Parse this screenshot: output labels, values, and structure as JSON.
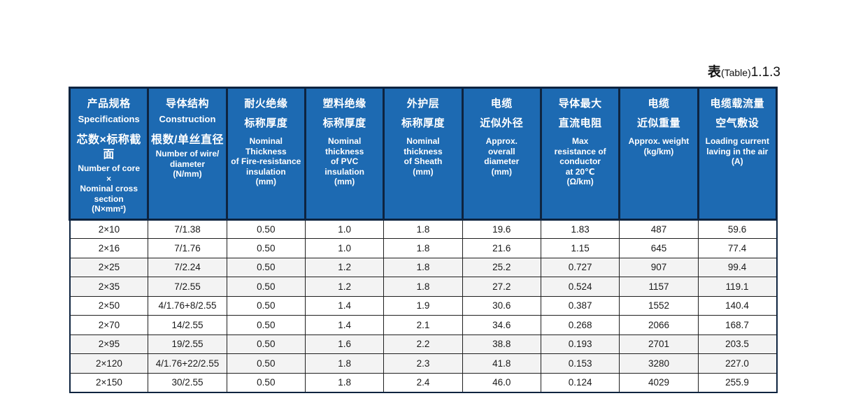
{
  "title": {
    "prefix_cn": "表",
    "table_word": "(Table)",
    "number": "1.1.3"
  },
  "colors": {
    "header_bg": "#1d6ab2",
    "header_border": "#0e2440",
    "header_text": "#ffffff",
    "body_border": "#1f1f1f",
    "stripe_bg": "#f3f3f3",
    "body_text": "#1a1a1a"
  },
  "table": {
    "header": [
      {
        "cn_lines": [
          "产品规格"
        ],
        "en_bold": "Specifications",
        "cn2_lines": [
          "芯数×标称截面"
        ],
        "en_lines": [
          "Number of core",
          "×",
          "Nominal cross",
          "section",
          "(N×mm²)"
        ]
      },
      {
        "cn_lines": [
          "导体结构"
        ],
        "en_bold": "Construction",
        "cn2_lines": [
          "根数/单丝直径"
        ],
        "en_lines": [
          "Number of wire/",
          "diameter",
          "(N/mm)"
        ]
      },
      {
        "cn_lines": [
          "耐火绝缘",
          "标称厚度"
        ],
        "en_lines": [
          "Nominal",
          "Thickness",
          "of Fire-resistance",
          "insulation",
          "(mm)"
        ]
      },
      {
        "cn_lines": [
          "塑料绝缘",
          "标称厚度"
        ],
        "en_lines": [
          "Nominal",
          "thickness",
          "of PVC",
          "insulation",
          "(mm)"
        ]
      },
      {
        "cn_lines": [
          "外护层",
          "标称厚度"
        ],
        "en_lines": [
          "Nominal",
          "thickness",
          "of Sheath",
          "(mm)"
        ]
      },
      {
        "cn_lines": [
          "电缆",
          "近似外径"
        ],
        "en_lines": [
          "Approx.",
          "overall",
          "diameter",
          "(mm)"
        ]
      },
      {
        "cn_lines": [
          "导体最大",
          "直流电阻"
        ],
        "en_lines": [
          "Max",
          "resistance of",
          "conductor",
          "at 20℃",
          "(Ω/km)"
        ]
      },
      {
        "cn_lines": [
          "电缆",
          "近似重量"
        ],
        "en_lines": [
          "Approx. weight",
          "(kg/km)"
        ]
      },
      {
        "cn_lines": [
          "电缆载流量",
          "空气敷设"
        ],
        "en_lines": [
          "Loading current",
          "laving in the air",
          "(A)"
        ]
      }
    ],
    "rows": [
      [
        "2×10",
        "7/1.38",
        "0.50",
        "1.0",
        "1.8",
        "19.6",
        "1.83",
        "487",
        "59.6"
      ],
      [
        "2×16",
        "7/1.76",
        "0.50",
        "1.0",
        "1.8",
        "21.6",
        "1.15",
        "645",
        "77.4"
      ],
      [
        "2×25",
        "7/2.24",
        "0.50",
        "1.2",
        "1.8",
        "25.2",
        "0.727",
        "907",
        "99.4"
      ],
      [
        "2×35",
        "7/2.55",
        "0.50",
        "1.2",
        "1.8",
        "27.2",
        "0.524",
        "1157",
        "119.1"
      ],
      [
        "2×50",
        "4/1.76+8/2.55",
        "0.50",
        "1.4",
        "1.9",
        "30.6",
        "0.387",
        "1552",
        "140.4"
      ],
      [
        "2×70",
        "14/2.55",
        "0.50",
        "1.4",
        "2.1",
        "34.6",
        "0.268",
        "2066",
        "168.7"
      ],
      [
        "2×95",
        "19/2.55",
        "0.50",
        "1.6",
        "2.2",
        "38.8",
        "0.193",
        "2701",
        "203.5"
      ],
      [
        "2×120",
        "4/1.76+22/2.55",
        "0.50",
        "1.8",
        "2.3",
        "41.8",
        "0.153",
        "3280",
        "227.0"
      ],
      [
        "2×150",
        "30/2.55",
        "0.50",
        "1.8",
        "2.4",
        "46.0",
        "0.124",
        "4029",
        "255.9"
      ]
    ]
  }
}
